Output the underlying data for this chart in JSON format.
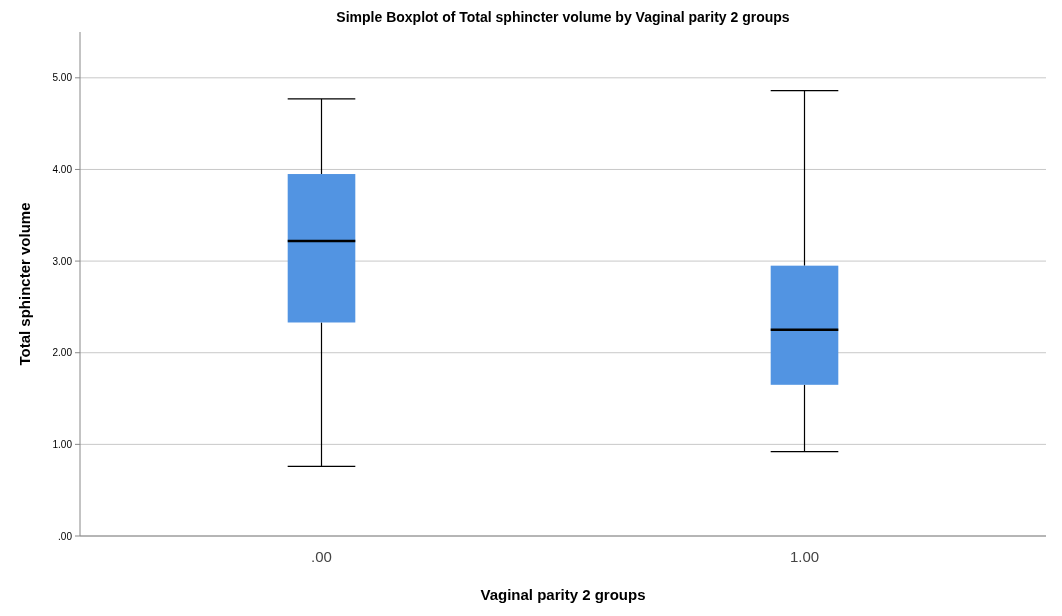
{
  "chart_data": {
    "type": "box",
    "title": "Simple Boxplot of Total sphincter volume by Vaginal parity 2 groups",
    "xlabel": "Vaginal parity 2 groups",
    "ylabel": "Total sphincter volume",
    "categories": [
      ".00",
      "1.00"
    ],
    "boxes": [
      {
        "low": 0.76,
        "q1": 2.33,
        "median": 3.22,
        "q3": 3.95,
        "high": 4.77
      },
      {
        "low": 0.92,
        "q1": 1.65,
        "median": 2.25,
        "q3": 2.95,
        "high": 4.86
      }
    ],
    "color": "#5294e2",
    "ylim": [
      0,
      5.5
    ],
    "yticks": [
      {
        "value": 0,
        "label": ".00"
      },
      {
        "value": 1,
        "label": "1.00"
      },
      {
        "value": 2,
        "label": "2.00"
      },
      {
        "value": 3,
        "label": "3.00"
      },
      {
        "value": 4,
        "label": "4.00"
      },
      {
        "value": 5,
        "label": "5.00"
      }
    ],
    "grid": "y"
  }
}
